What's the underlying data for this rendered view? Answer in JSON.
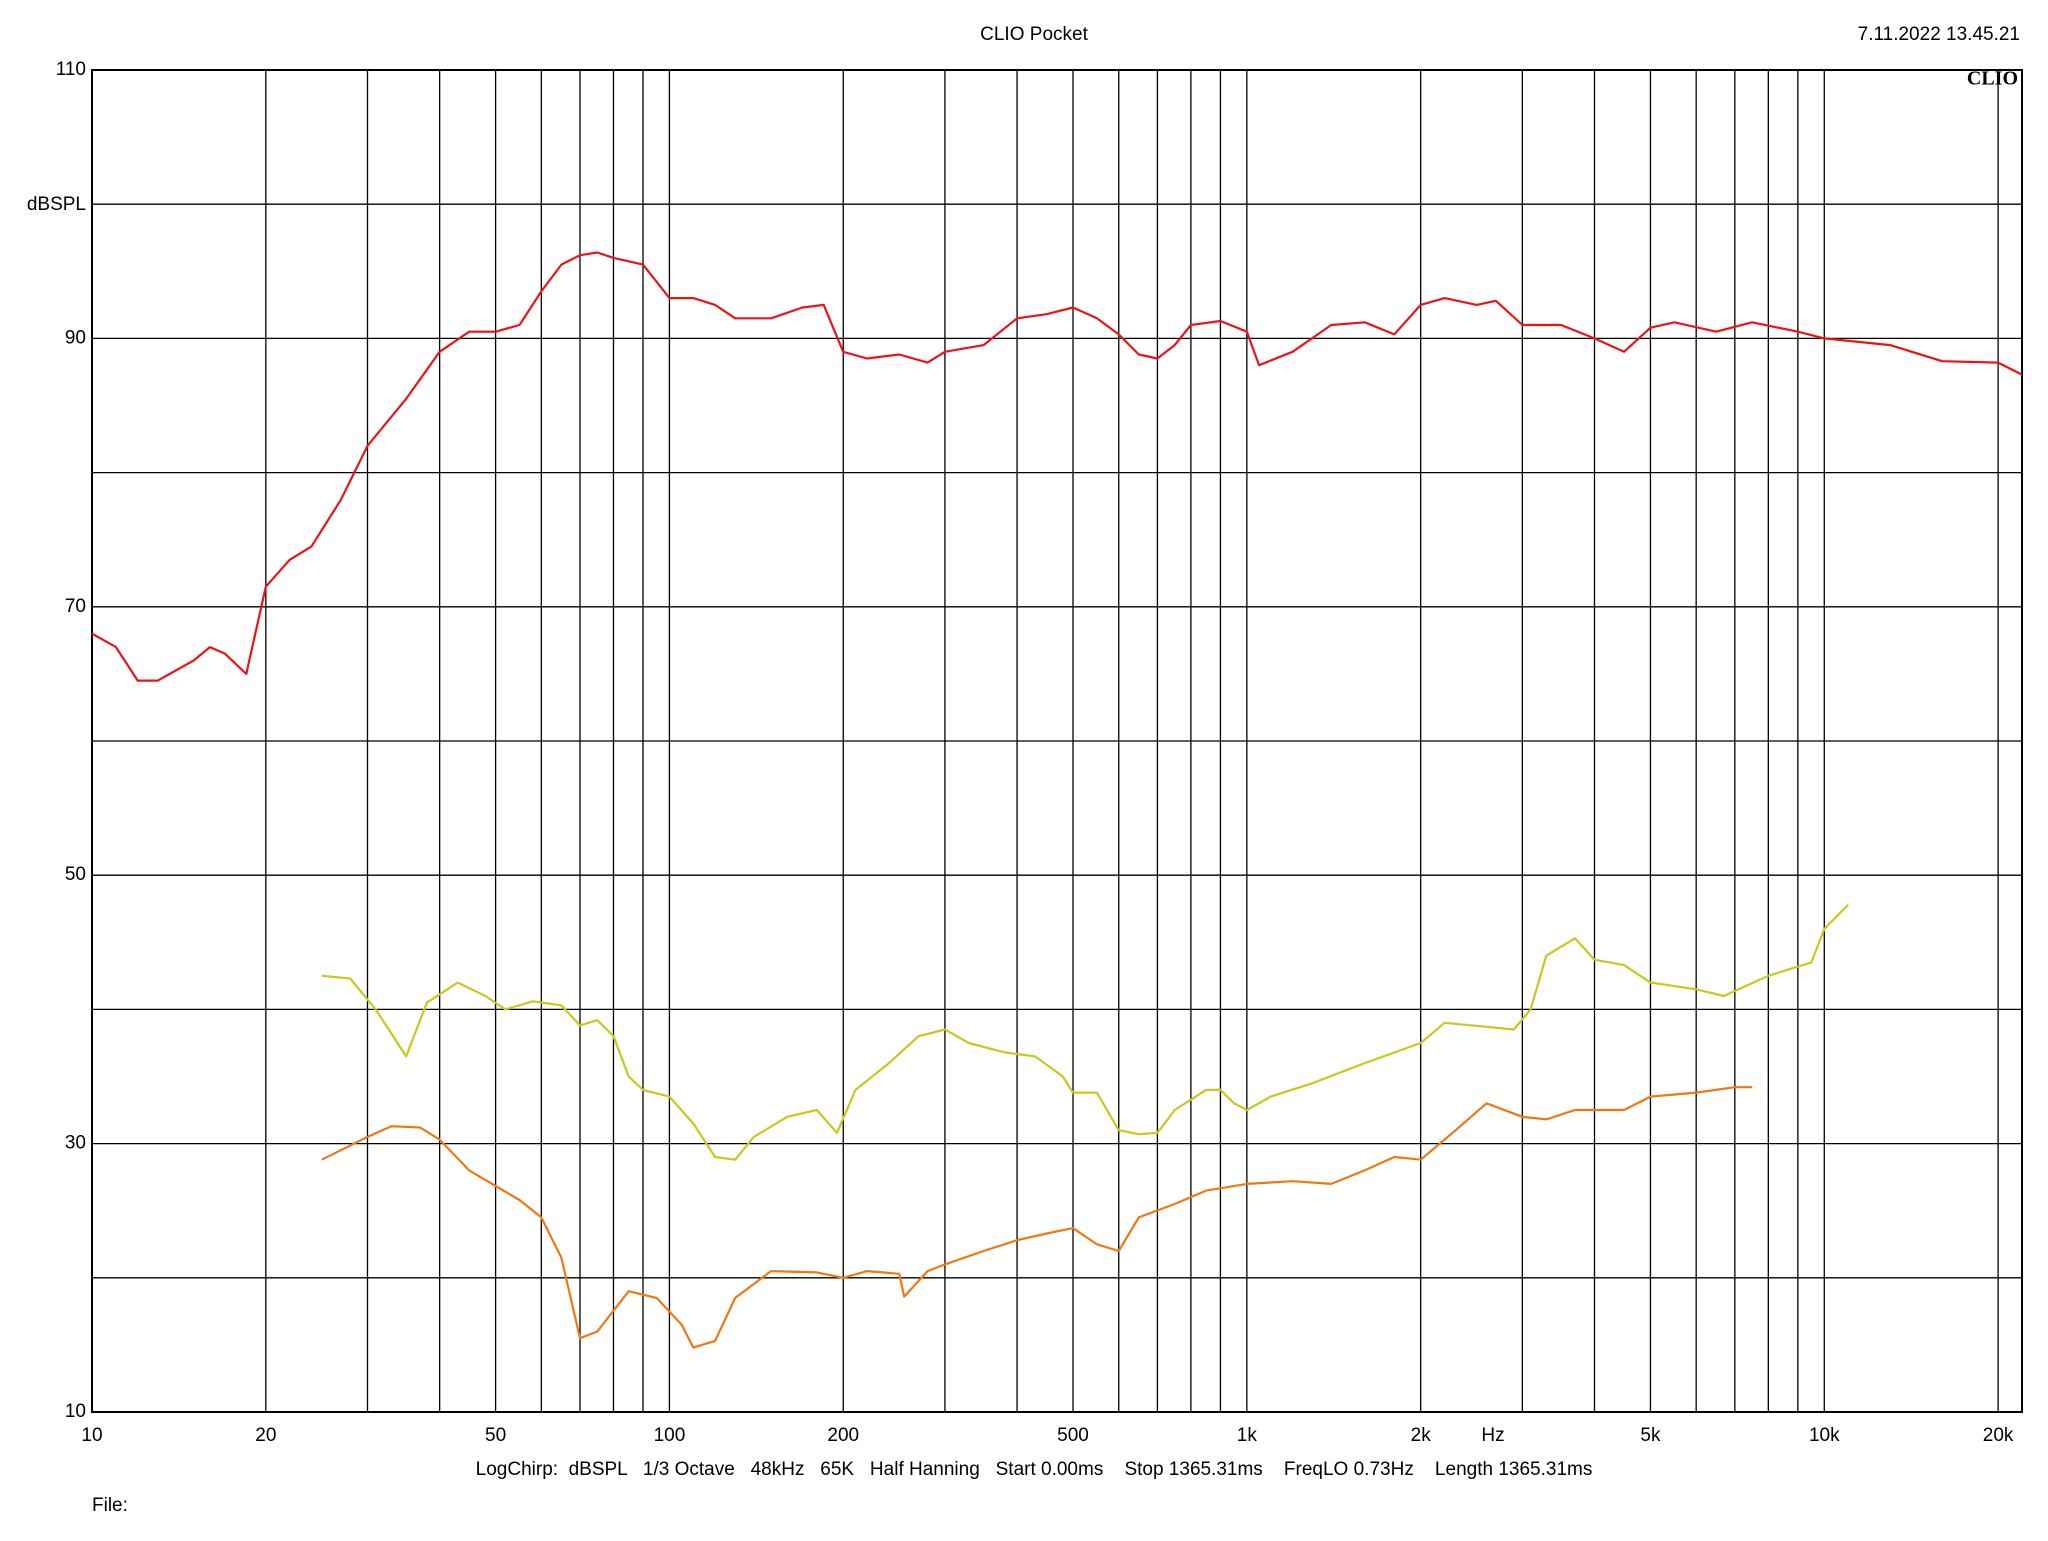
{
  "chart_data": {
    "type": "line",
    "title": "CLIO Pocket",
    "timestamp": "7.11.2022 13.45.21",
    "logo": "CLIO",
    "ylabel": "dBSPL",
    "xlabel": "Hz",
    "footer": "LogChirp:  dBSPL   1/3 Octave   48kHz   65K   Half Hanning   Start 0.00ms    Stop 1365.31ms    FreqLO 0.73Hz    Length 1365.31ms",
    "file_label": "File:",
    "xscale": "log",
    "xlim": [
      10,
      22000
    ],
    "xticks": [
      10,
      20,
      50,
      100,
      200,
      500,
      {
        "value": 1000,
        "label": "1k"
      },
      {
        "value": 2000,
        "label": "2k"
      },
      {
        "value": 5000,
        "label": "5k"
      },
      {
        "value": 10000,
        "label": "10k"
      },
      {
        "value": 20000,
        "label": "20k"
      }
    ],
    "x_minor_grid": [
      30,
      40,
      60,
      70,
      80,
      90,
      300,
      400,
      600,
      700,
      800,
      900,
      3000,
      4000,
      6000,
      7000,
      8000,
      9000
    ],
    "ylim": [
      10,
      110
    ],
    "yticks": [
      10,
      30,
      50,
      70,
      90,
      110
    ],
    "y_minor_grid": [
      20,
      40,
      60,
      80,
      100
    ],
    "grid": true,
    "series": [
      {
        "color": "#e8141c",
        "x": [
          10,
          11,
          12,
          13,
          15,
          16,
          17,
          18.5,
          20,
          22,
          24,
          27,
          30,
          35,
          40,
          45,
          50,
          55,
          60,
          65,
          70,
          75,
          80,
          90,
          100,
          110,
          120,
          130,
          150,
          170,
          185,
          200,
          220,
          250,
          280,
          300,
          350,
          400,
          450,
          500,
          550,
          600,
          650,
          700,
          750,
          800,
          900,
          1000,
          1050,
          1200,
          1400,
          1600,
          1800,
          2000,
          2200,
          2500,
          2700,
          3000,
          3500,
          4000,
          4500,
          5000,
          5500,
          6500,
          7500,
          9000,
          10000,
          13000,
          16000,
          20000,
          22000
        ],
        "values": [
          68,
          67,
          64.5,
          64.5,
          66,
          67,
          66.5,
          65,
          71.5,
          73.5,
          74.5,
          78,
          82,
          85.5,
          89,
          90.5,
          90.5,
          91,
          93.5,
          95.5,
          96.2,
          96.4,
          96,
          95.5,
          93,
          93,
          92.5,
          91.5,
          91.5,
          92.3,
          92.5,
          89,
          88.5,
          88.8,
          88.2,
          89,
          89.5,
          91.5,
          91.8,
          92.3,
          91.5,
          90.3,
          88.8,
          88.5,
          89.5,
          91,
          91.3,
          90.5,
          88,
          89,
          91,
          91.2,
          90.3,
          92.5,
          93,
          92.5,
          92.8,
          91,
          91,
          90,
          89,
          90.8,
          91.2,
          90.5,
          91.2,
          90.5,
          90,
          89.5,
          88.3,
          88.2,
          87.3
        ]
      },
      {
        "color": "#c8c81e",
        "x": [
          25,
          28,
          31,
          35,
          38,
          43,
          48,
          52,
          58,
          65,
          70,
          75,
          80,
          85,
          90,
          100,
          110,
          120,
          130,
          140,
          160,
          180,
          195,
          210,
          240,
          270,
          300,
          330,
          380,
          430,
          480,
          500,
          550,
          600,
          650,
          700,
          750,
          850,
          900,
          950,
          1000,
          1100,
          1300,
          1600,
          2000,
          2200,
          2600,
          2900,
          3100,
          3300,
          3700,
          4000,
          4500,
          5000,
          6000,
          6700,
          8000,
          9500,
          10000,
          11000
        ],
        "values": [
          42.5,
          42.3,
          40,
          36.5,
          40.5,
          42,
          41,
          40,
          40.6,
          40.3,
          38.8,
          39.2,
          38,
          35,
          34,
          33.5,
          31.5,
          29,
          28.8,
          30.5,
          32,
          32.5,
          30.8,
          34,
          36,
          38,
          38.5,
          37.5,
          36.8,
          36.5,
          35,
          33.8,
          33.8,
          31,
          30.7,
          30.8,
          32.5,
          34,
          34,
          33,
          32.5,
          33.5,
          34.5,
          36,
          37.5,
          39,
          38.7,
          38.5,
          40,
          44,
          45.3,
          43.7,
          43.3,
          42,
          41.5,
          41,
          42.5,
          43.5,
          46,
          47.8
        ]
      },
      {
        "color": "#f07814",
        "x": [
          25,
          30,
          33,
          37,
          40,
          45,
          55,
          60,
          65,
          70,
          75,
          85,
          95,
          105,
          110,
          120,
          130,
          150,
          180,
          200,
          220,
          250,
          255,
          280,
          300,
          350,
          400,
          450,
          500,
          550,
          600,
          650,
          750,
          850,
          1000,
          1200,
          1400,
          1600,
          1800,
          2000,
          2300,
          2600,
          3000,
          3300,
          3700,
          4000,
          4500,
          5000,
          6000,
          7000,
          7500
        ],
        "values": [
          28.8,
          30.5,
          31.3,
          31.2,
          30.3,
          28,
          25.8,
          24.5,
          21.5,
          15.5,
          16,
          19,
          18.5,
          16.5,
          14.8,
          15.3,
          18.5,
          20.5,
          20.4,
          20,
          20.5,
          20.3,
          18.6,
          20.5,
          21,
          22,
          22.8,
          23.3,
          23.7,
          22.5,
          22,
          24.5,
          25.5,
          26.5,
          27,
          27.2,
          27,
          28,
          29,
          28.8,
          31,
          33,
          32,
          31.8,
          32.5,
          32.5,
          32.5,
          33.5,
          33.8,
          34.2,
          34.2
        ]
      }
    ]
  }
}
